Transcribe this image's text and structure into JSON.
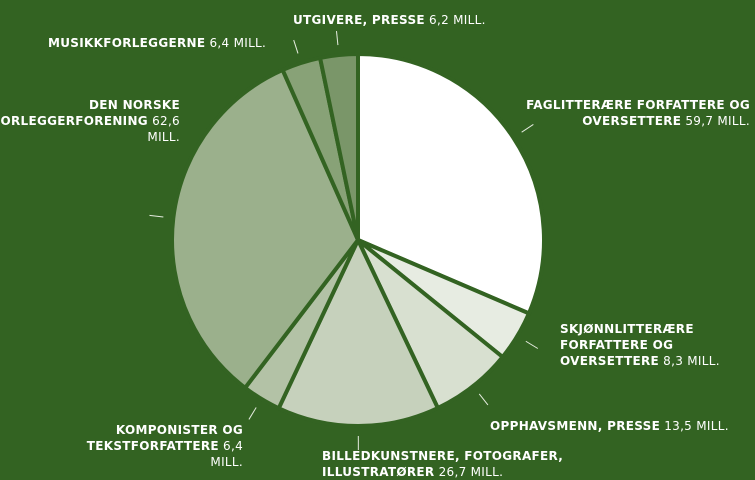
{
  "chart_data": {
    "type": "pie",
    "categories": [
      "FAGLITTERÆRE FORFATTERE OG OVERSETTERE",
      "SKJØNNLITTERÆRE FORFATTERE OG OVERSETTERE",
      "OPPHAVSMENN, PRESSE",
      "BILLEDKUNSTNERE, FOTOGRAFER, ILLUSTRATØRER",
      "KOMPONISTER OG TEKSTFORFATTERE",
      "DEN NORSKE FORLEGGERFORENING",
      "MUSIKKFORLEGGERNE",
      "UTGIVERE, PRESSE"
    ],
    "values": [
      59.7,
      8.3,
      13.5,
      26.7,
      6.4,
      62.6,
      6.4,
      6.2
    ],
    "value_labels": [
      "59,7 MILL.",
      "8,3 MILL.",
      "13,5 MILL.",
      "26,7 MILL.",
      "6,4 MILL.",
      "62,6 MILL.",
      "6,4 MILL.",
      "6,2 MILL."
    ],
    "colors": [
      "#ffffff",
      "#e7ece2",
      "#d8e0d0",
      "#c6d1bc",
      "#b3c2a6",
      "#9bb08c",
      "#88a277",
      "#7a9669"
    ]
  }
}
